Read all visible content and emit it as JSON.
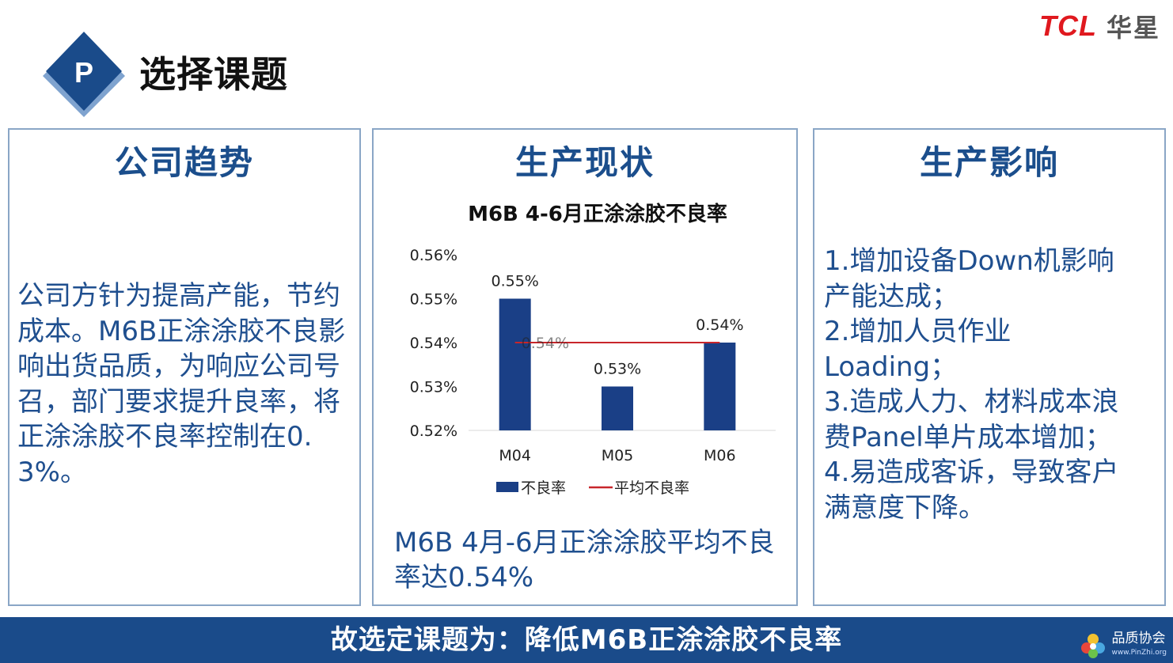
{
  "header": {
    "badge_letter": "P",
    "title": "选择课题",
    "logo_brand": "TCL",
    "logo_cn": "华星"
  },
  "panels": {
    "trend": {
      "title": "公司趋势",
      "body": "公司方针为提高产能，节约成本。M6B正涂涂胶不良影响出货品质，为响应公司号召，部门要求提升良率，将正涂涂胶不良率控制在0.3%。"
    },
    "status": {
      "title": "生产现状",
      "summary": "M6B 4月-6月正涂涂胶平均不良率达0.54%"
    },
    "impact": {
      "title": "生产影响",
      "lines": [
        "1.增加设备Down机影响",
        "产能达成；",
        "2.增加人员作业",
        "Loading；",
        "3.造成人力、材料成本浪",
        "费Panel单片成本增加；",
        "4.易造成客诉，导致客户",
        "满意度下降。"
      ]
    }
  },
  "chart_data": {
    "type": "bar",
    "title": "M6B 4-6月正涂涂胶不良率",
    "categories": [
      "M04",
      "M05",
      "M06"
    ],
    "series": [
      {
        "name": "不良率",
        "values": [
          0.55,
          0.53,
          0.54
        ],
        "labels": [
          "0.55%",
          "0.53%",
          "0.54%"
        ],
        "color": "#1a3f86"
      },
      {
        "name": "平均不良率",
        "values": [
          0.54,
          0.54,
          0.54
        ],
        "label": "0.54%",
        "color": "#c8262b"
      }
    ],
    "y_ticks": [
      "0.56%",
      "0.55%",
      "0.54%",
      "0.53%",
      "0.52%"
    ],
    "ylim": [
      0.52,
      0.56
    ],
    "legend": "bottom",
    "grid": false
  },
  "bottom_bar": {
    "text": "故选定课题为：降低M6B正涂涂胶不良率"
  },
  "watermark": {
    "text": "品质协会",
    "url": "www.PinZhi.org"
  },
  "colors": {
    "accent": "#1a4b8a",
    "panel_border": "#8aa6c6",
    "logo_red": "#e0191f"
  }
}
